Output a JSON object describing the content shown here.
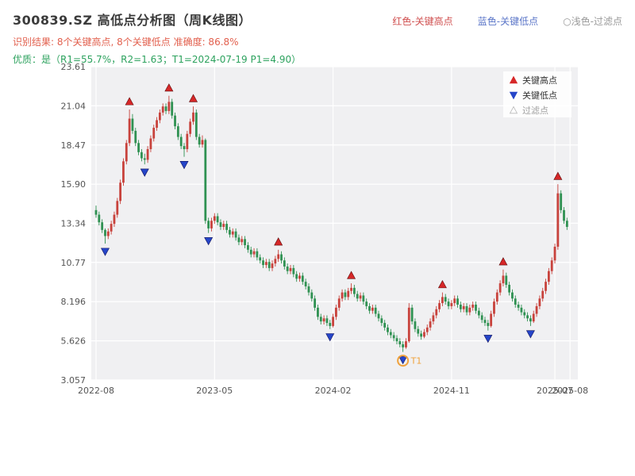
{
  "header": {
    "title": "300839.SZ 高低点分析图（周K线图）",
    "legend_right": [
      {
        "label": "红色-关键高点",
        "color": "#d05050"
      },
      {
        "label": "蓝色-关键低点",
        "color": "#5b76c8"
      },
      {
        "label": "○浅色-过滤点",
        "color": "#9a9a9a"
      }
    ],
    "result_line": "识别结果: 8个关键高点, 8个关键低点  准确度: 86.8%",
    "result_color": "#e2604e",
    "quality_line": "优质：是（R1=55.7%，R2=1.63；T1=2024-07-19 P1=4.90）",
    "quality_color": "#2da25e"
  },
  "chart_data": {
    "type": "candlestick",
    "period": "weekly",
    "symbol": "300839.SZ",
    "y_range": [
      3.057,
      23.61
    ],
    "y_axis": {
      "ticks": [
        [
          23.61,
          "23.61"
        ],
        [
          21.04,
          "21.04"
        ],
        [
          18.47,
          "18.47"
        ],
        [
          15.9,
          "15.90"
        ],
        [
          13.34,
          "13.34"
        ],
        [
          10.77,
          "10.77"
        ],
        [
          8.196,
          "8.196"
        ],
        [
          5.626,
          "5.626"
        ],
        [
          3.057,
          "3.057"
        ]
      ]
    },
    "x_axis": {
      "ticks": [
        [
          0,
          "2022-08"
        ],
        [
          39,
          "2023-05"
        ],
        [
          78,
          "2024-02"
        ],
        [
          117,
          "2024-11"
        ],
        [
          151,
          "2025-07"
        ],
        [
          156,
          "2025-08"
        ]
      ]
    },
    "colors": {
      "plot_bg": "#f0f0f2",
      "grid": "#ffffff",
      "axis_text": "#555555",
      "up": "#c8423c",
      "down": "#2f9152",
      "key_high": "#d62728",
      "key_low": "#2545c8"
    },
    "candles": [
      [
        14.2,
        14.5,
        13.7,
        13.9
      ],
      [
        13.9,
        14.1,
        13.2,
        13.4
      ],
      [
        13.4,
        13.6,
        12.7,
        12.9
      ],
      [
        12.9,
        13.0,
        12.0,
        12.5
      ],
      [
        12.5,
        13.0,
        12.3,
        12.8
      ],
      [
        12.8,
        13.5,
        12.6,
        13.3
      ],
      [
        13.3,
        14.1,
        13.1,
        13.9
      ],
      [
        13.9,
        15.0,
        13.7,
        14.8
      ],
      [
        14.8,
        16.2,
        14.6,
        16.0
      ],
      [
        16.0,
        17.6,
        15.8,
        17.4
      ],
      [
        17.4,
        18.8,
        17.2,
        18.6
      ],
      [
        18.6,
        20.8,
        18.4,
        20.2
      ],
      [
        20.2,
        20.5,
        19.2,
        19.4
      ],
      [
        19.4,
        19.6,
        18.4,
        18.6
      ],
      [
        18.6,
        18.8,
        17.8,
        18.0
      ],
      [
        18.0,
        18.2,
        17.4,
        17.6
      ],
      [
        17.6,
        17.9,
        17.2,
        17.5
      ],
      [
        17.5,
        18.4,
        17.3,
        18.2
      ],
      [
        18.2,
        19.1,
        18.0,
        18.9
      ],
      [
        18.9,
        19.8,
        18.7,
        19.6
      ],
      [
        19.6,
        20.3,
        19.4,
        20.1
      ],
      [
        20.1,
        20.8,
        19.9,
        20.6
      ],
      [
        20.6,
        21.2,
        20.4,
        21.0
      ],
      [
        21.0,
        21.2,
        20.5,
        20.7
      ],
      [
        20.7,
        21.7,
        20.5,
        21.3
      ],
      [
        21.3,
        21.5,
        20.2,
        20.4
      ],
      [
        20.4,
        20.6,
        19.5,
        19.7
      ],
      [
        19.7,
        19.9,
        18.8,
        19.0
      ],
      [
        19.0,
        19.2,
        18.2,
        18.4
      ],
      [
        18.4,
        18.6,
        17.7,
        18.2
      ],
      [
        18.2,
        19.4,
        18.0,
        19.2
      ],
      [
        19.2,
        20.2,
        19.0,
        20.0
      ],
      [
        20.0,
        21.0,
        19.8,
        20.6
      ],
      [
        20.6,
        20.8,
        18.8,
        19.0
      ],
      [
        19.0,
        19.2,
        18.3,
        18.5
      ],
      [
        18.5,
        19.1,
        18.3,
        18.8
      ],
      [
        18.8,
        18.9,
        13.3,
        13.5
      ],
      [
        13.5,
        13.7,
        12.7,
        13.0
      ],
      [
        13.0,
        13.7,
        12.8,
        13.5
      ],
      [
        13.5,
        14.0,
        13.3,
        13.8
      ],
      [
        13.8,
        14.0,
        13.2,
        13.4
      ],
      [
        13.4,
        13.6,
        12.9,
        13.1
      ],
      [
        13.1,
        13.5,
        12.9,
        13.3
      ],
      [
        13.3,
        13.5,
        12.7,
        12.9
      ],
      [
        12.9,
        13.1,
        12.4,
        12.6
      ],
      [
        12.6,
        13.0,
        12.4,
        12.8
      ],
      [
        12.8,
        13.0,
        12.2,
        12.4
      ],
      [
        12.4,
        12.6,
        11.9,
        12.1
      ],
      [
        12.1,
        12.5,
        11.9,
        12.3
      ],
      [
        12.3,
        12.5,
        11.7,
        11.9
      ],
      [
        11.9,
        12.1,
        11.4,
        11.6
      ],
      [
        11.6,
        11.8,
        11.1,
        11.3
      ],
      [
        11.3,
        11.7,
        11.1,
        11.5
      ],
      [
        11.5,
        11.7,
        10.9,
        11.1
      ],
      [
        11.1,
        11.3,
        10.7,
        10.9
      ],
      [
        10.9,
        11.1,
        10.4,
        10.6
      ],
      [
        10.6,
        11.0,
        10.4,
        10.8
      ],
      [
        10.8,
        11.0,
        10.2,
        10.4
      ],
      [
        10.4,
        10.9,
        10.2,
        10.7
      ],
      [
        10.7,
        11.2,
        10.5,
        11.0
      ],
      [
        11.0,
        11.6,
        10.8,
        11.3
      ],
      [
        11.3,
        11.5,
        10.7,
        10.9
      ],
      [
        10.9,
        11.1,
        10.3,
        10.5
      ],
      [
        10.5,
        10.7,
        10.0,
        10.2
      ],
      [
        10.2,
        10.6,
        10.0,
        10.4
      ],
      [
        10.4,
        10.6,
        9.8,
        10.0
      ],
      [
        10.0,
        10.2,
        9.5,
        9.7
      ],
      [
        9.7,
        10.1,
        9.5,
        9.9
      ],
      [
        9.9,
        10.1,
        9.3,
        9.5
      ],
      [
        9.5,
        9.7,
        9.0,
        9.2
      ],
      [
        9.2,
        9.4,
        8.6,
        8.8
      ],
      [
        8.8,
        9.0,
        8.2,
        8.4
      ],
      [
        8.4,
        8.6,
        7.6,
        7.8
      ],
      [
        7.8,
        8.0,
        7.0,
        7.2
      ],
      [
        7.2,
        7.4,
        6.7,
        6.9
      ],
      [
        6.9,
        7.3,
        6.7,
        7.1
      ],
      [
        7.1,
        7.3,
        6.6,
        6.8
      ],
      [
        6.8,
        7.0,
        6.4,
        6.6
      ],
      [
        6.6,
        7.4,
        6.5,
        7.2
      ],
      [
        7.2,
        8.0,
        7.0,
        7.8
      ],
      [
        7.8,
        8.6,
        7.6,
        8.4
      ],
      [
        8.4,
        9.0,
        8.2,
        8.8
      ],
      [
        8.8,
        9.0,
        8.3,
        8.5
      ],
      [
        8.5,
        9.1,
        8.3,
        8.9
      ],
      [
        8.9,
        9.4,
        8.7,
        9.1
      ],
      [
        9.1,
        9.3,
        8.5,
        8.7
      ],
      [
        8.7,
        8.9,
        8.2,
        8.4
      ],
      [
        8.4,
        8.8,
        8.2,
        8.6
      ],
      [
        8.6,
        8.8,
        8.0,
        8.2
      ],
      [
        8.2,
        8.4,
        7.7,
        7.9
      ],
      [
        7.9,
        8.1,
        7.4,
        7.6
      ],
      [
        7.6,
        8.0,
        7.4,
        7.8
      ],
      [
        7.8,
        8.0,
        7.2,
        7.4
      ],
      [
        7.4,
        7.6,
        6.9,
        7.1
      ],
      [
        7.1,
        7.3,
        6.6,
        6.8
      ],
      [
        6.8,
        7.0,
        6.3,
        6.5
      ],
      [
        6.5,
        6.7,
        6.0,
        6.2
      ],
      [
        6.2,
        6.4,
        5.8,
        6.0
      ],
      [
        6.0,
        6.2,
        5.6,
        5.8
      ],
      [
        5.8,
        6.0,
        5.4,
        5.6
      ],
      [
        5.6,
        5.8,
        5.2,
        5.4
      ],
      [
        5.4,
        5.6,
        4.9,
        5.2
      ],
      [
        5.2,
        5.8,
        5.1,
        5.6
      ],
      [
        5.6,
        8.1,
        5.5,
        7.8
      ],
      [
        7.8,
        8.0,
        6.7,
        6.9
      ],
      [
        6.9,
        7.1,
        6.2,
        6.4
      ],
      [
        6.4,
        6.6,
        5.9,
        6.1
      ],
      [
        6.1,
        6.3,
        5.7,
        5.9
      ],
      [
        5.9,
        6.4,
        5.8,
        6.2
      ],
      [
        6.2,
        6.7,
        6.0,
        6.5
      ],
      [
        6.5,
        7.1,
        6.3,
        6.9
      ],
      [
        6.9,
        7.5,
        6.7,
        7.3
      ],
      [
        7.3,
        7.9,
        7.1,
        7.7
      ],
      [
        7.7,
        8.3,
        7.5,
        8.1
      ],
      [
        8.1,
        8.8,
        7.9,
        8.5
      ],
      [
        8.5,
        8.7,
        8.0,
        8.2
      ],
      [
        8.2,
        8.4,
        7.7,
        7.9
      ],
      [
        7.9,
        8.3,
        7.7,
        8.1
      ],
      [
        8.1,
        8.6,
        7.9,
        8.4
      ],
      [
        8.4,
        8.6,
        7.8,
        8.0
      ],
      [
        8.0,
        8.2,
        7.5,
        7.7
      ],
      [
        7.7,
        8.1,
        7.5,
        7.9
      ],
      [
        7.9,
        8.1,
        7.3,
        7.5
      ],
      [
        7.5,
        8.0,
        7.3,
        7.8
      ],
      [
        7.8,
        8.2,
        7.6,
        8.0
      ],
      [
        8.0,
        8.2,
        7.4,
        7.6
      ],
      [
        7.6,
        7.8,
        7.1,
        7.3
      ],
      [
        7.3,
        7.5,
        6.8,
        7.0
      ],
      [
        7.0,
        7.2,
        6.6,
        6.8
      ],
      [
        6.8,
        7.0,
        6.3,
        6.6
      ],
      [
        6.6,
        7.6,
        6.5,
        7.4
      ],
      [
        7.4,
        8.4,
        7.2,
        8.2
      ],
      [
        8.2,
        9.0,
        8.0,
        8.8
      ],
      [
        8.8,
        9.6,
        8.6,
        9.4
      ],
      [
        9.4,
        10.3,
        9.2,
        9.9
      ],
      [
        9.9,
        10.1,
        9.1,
        9.3
      ],
      [
        9.3,
        9.5,
        8.6,
        8.8
      ],
      [
        8.8,
        9.0,
        8.2,
        8.4
      ],
      [
        8.4,
        8.6,
        7.8,
        8.0
      ],
      [
        8.0,
        8.2,
        7.6,
        7.8
      ],
      [
        7.8,
        8.0,
        7.3,
        7.5
      ],
      [
        7.5,
        7.7,
        7.1,
        7.3
      ],
      [
        7.3,
        7.5,
        6.9,
        7.1
      ],
      [
        7.1,
        7.3,
        6.6,
        6.9
      ],
      [
        6.9,
        7.6,
        6.8,
        7.4
      ],
      [
        7.4,
        8.1,
        7.2,
        7.9
      ],
      [
        7.9,
        8.6,
        7.7,
        8.4
      ],
      [
        8.4,
        9.1,
        8.2,
        8.9
      ],
      [
        8.9,
        9.7,
        8.7,
        9.5
      ],
      [
        9.5,
        10.4,
        9.3,
        10.2
      ],
      [
        10.2,
        11.1,
        10.0,
        10.9
      ],
      [
        10.9,
        12.0,
        10.7,
        11.8
      ],
      [
        11.8,
        15.9,
        11.6,
        15.3
      ],
      [
        15.3,
        15.5,
        14.0,
        14.2
      ],
      [
        14.2,
        14.4,
        13.3,
        13.5
      ],
      [
        13.5,
        13.7,
        12.9,
        13.1
      ]
    ],
    "key_highs": [
      {
        "week": 11,
        "price": 20.8
      },
      {
        "week": 24,
        "price": 21.7
      },
      {
        "week": 32,
        "price": 21.0
      },
      {
        "week": 60,
        "price": 11.6
      },
      {
        "week": 84,
        "price": 9.4
      },
      {
        "week": 114,
        "price": 8.8
      },
      {
        "week": 134,
        "price": 10.3
      },
      {
        "week": 152,
        "price": 15.9
      }
    ],
    "key_lows": [
      {
        "week": 3,
        "price": 12.0
      },
      {
        "week": 16,
        "price": 17.2
      },
      {
        "week": 29,
        "price": 17.7
      },
      {
        "week": 37,
        "price": 12.7
      },
      {
        "week": 77,
        "price": 6.4
      },
      {
        "week": 101,
        "price": 4.9
      },
      {
        "week": 129,
        "price": 6.3
      },
      {
        "week": 143,
        "price": 6.6
      }
    ],
    "t1": {
      "week": 101,
      "price": 4.9,
      "label": "T1",
      "color": "#f0a23c"
    },
    "legend": [
      {
        "label": "关键高点",
        "shape": "triangle-up",
        "color": "#d62728",
        "text_color": "#333333"
      },
      {
        "label": "关键低点",
        "shape": "triangle-down",
        "color": "#2545c8",
        "text_color": "#333333"
      },
      {
        "label": "过滤点",
        "shape": "triangle-up-hollow",
        "color": "#cfcfcf",
        "text_color": "#a0a0a0"
      }
    ]
  }
}
